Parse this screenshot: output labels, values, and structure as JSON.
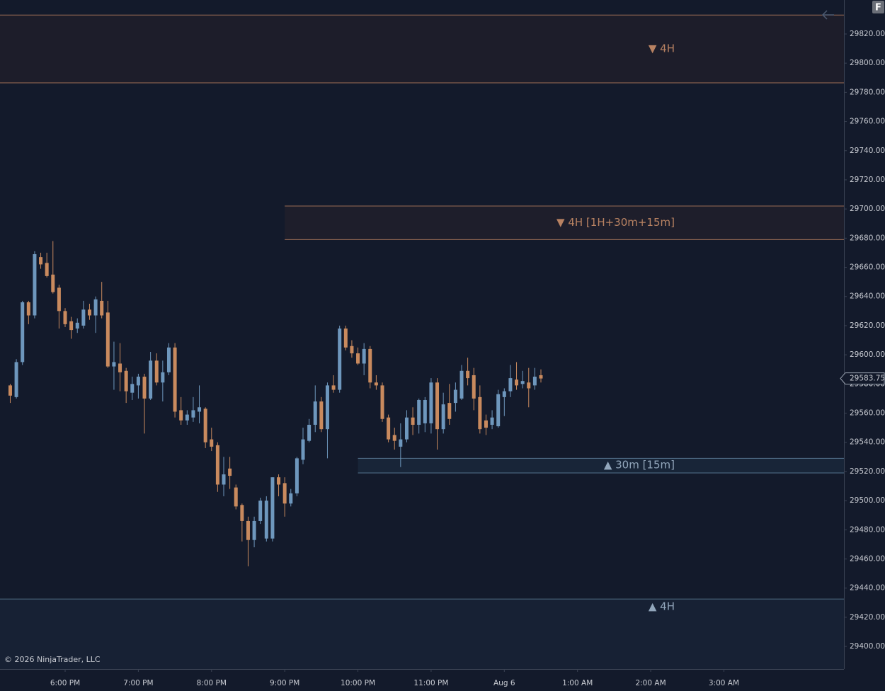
{
  "chart_data": {
    "type": "candlestick",
    "up_color": "#6e97bd",
    "down_color": "#c98a5e",
    "x": [
      17.25,
      17.3333,
      17.4167,
      17.5,
      17.5833,
      17.6667,
      17.75,
      17.8333,
      17.9167,
      18,
      18.0833,
      18.1667,
      18.25,
      18.3333,
      18.4167,
      18.5,
      18.5833,
      18.6667,
      18.75,
      18.8333,
      18.9167,
      19,
      19.0833,
      19.1667,
      19.25,
      19.3333,
      19.4167,
      19.5,
      19.5833,
      19.6667,
      19.75,
      19.8333,
      19.9167,
      20,
      20.0833,
      20.1667,
      20.25,
      20.3333,
      20.4167,
      20.5,
      20.5833,
      20.6667,
      20.75,
      20.8333,
      20.9167,
      21,
      21.0833,
      21.1667,
      21.25,
      21.3333,
      21.4167,
      21.5,
      21.5833,
      21.6667,
      21.75,
      21.8333,
      21.9167,
      22,
      22.0833,
      22.1667,
      22.25,
      22.3333,
      22.4167,
      22.5,
      22.5833,
      22.6667,
      22.75,
      22.8333,
      22.9167,
      23,
      23.0833,
      23.1667,
      23.25,
      23.3333,
      23.4167,
      23.5,
      23.5833,
      23.6667,
      23.75,
      23.8333,
      23.9167,
      24,
      24.0833,
      24.1667,
      24.25,
      24.3333,
      24.4167,
      24.5
    ],
    "open": [
      29579,
      29571,
      29595,
      29636,
      29627,
      29667,
      29663,
      29655,
      29646,
      29630,
      29623,
      29618,
      29620,
      29631,
      29627,
      29637,
      29629,
      29592,
      29594,
      29589,
      29574,
      29579,
      29585,
      29570,
      29596,
      29581,
      29588,
      29605,
      29562,
      29555,
      29557,
      29561,
      29563,
      29542,
      29538,
      29511,
      29522,
      29509,
      29497,
      29486,
      29473,
      29486,
      29474,
      29474,
      29516,
      29512,
      29498,
      29505,
      29528,
      29541,
      29552,
      29568,
      29549,
      29579,
      29576,
      29618,
      29606,
      29601,
      29594,
      29604,
      29581,
      29579,
      29557,
      29545,
      29537,
      29542,
      29557,
      29552,
      29553,
      29553,
      29581,
      29549,
      29567,
      29567,
      29570,
      29589,
      29586,
      29571,
      29555,
      29552,
      29551,
      29571,
      29575,
      29583,
      29580,
      29581,
      29579,
      29586
    ],
    "high": [
      29580,
      29597,
      29637,
      29637,
      29671,
      29670,
      29670,
      29678,
      29648,
      29632,
      29626,
      29625,
      29637,
      29635,
      29640,
      29650,
      29637,
      29609,
      29608,
      29591,
      29585,
      29587,
      29587,
      29602,
      29601,
      29596,
      29608,
      29608,
      29571,
      29562,
      29571,
      29579,
      29564,
      29550,
      29540,
      29530,
      29530,
      29511,
      29498,
      29489,
      29489,
      29502,
      29503,
      29516,
      29518,
      29516,
      29508,
      29530,
      29550,
      29556,
      29579,
      29571,
      29581,
      29586,
      29620,
      29620,
      29610,
      29605,
      29608,
      29606,
      29586,
      29581,
      29559,
      29550,
      29553,
      29562,
      29564,
      29570,
      29571,
      29584,
      29584,
      29574,
      29580,
      29581,
      29593,
      29598,
      29591,
      29579,
      29559,
      29562,
      29576,
      29577,
      29593,
      29595,
      29589,
      29591,
      29591,
      29590
    ],
    "low": [
      29567,
      29570,
      29593,
      29621,
      29625,
      29659,
      29653,
      29642,
      29618,
      29619,
      29611,
      29615,
      29618,
      29624,
      29615,
      29625,
      29591,
      29576,
      29575,
      29567,
      29569,
      29570,
      29546,
      29569,
      29579,
      29568,
      29586,
      29557,
      29552,
      29552,
      29554,
      29553,
      29536,
      29534,
      29506,
      29503,
      29508,
      29494,
      29472,
      29455,
      29468,
      29484,
      29472,
      29472,
      29503,
      29489,
      29496,
      29503,
      29525,
      29540,
      29547,
      29547,
      29529,
      29574,
      29574,
      29603,
      29598,
      29593,
      29586,
      29577,
      29576,
      29554,
      29540,
      29535,
      29523,
      29540,
      29545,
      29546,
      29547,
      29546,
      29535,
      29546,
      29552,
      29561,
      29569,
      29579,
      29562,
      29546,
      29545,
      29549,
      29550,
      29558,
      29571,
      29576,
      29577,
      29564,
      29576,
      29581
    ],
    "close": [
      29572,
      29595,
      29636,
      29627,
      29669,
      29662,
      29654,
      29643,
      29630,
      29621,
      29617,
      29622,
      29631,
      29627,
      29638,
      29627,
      29592,
      29595,
      29588,
      29575,
      29580,
      29585,
      29570,
      29596,
      29581,
      29588,
      29605,
      29561,
      29555,
      29559,
      29562,
      29564,
      29540,
      29537,
      29511,
      29518,
      29517,
      29496,
      29486,
      29473,
      29486,
      29500,
      29500,
      29516,
      29511,
      29498,
      29505,
      29529,
      29542,
      29552,
      29568,
      29549,
      29579,
      29576,
      29618,
      29605,
      29601,
      29594,
      29604,
      29581,
      29579,
      29556,
      29542,
      29541,
      29542,
      29557,
      29552,
      29569,
      29569,
      29581,
      29549,
      29566,
      29556,
      29576,
      29589,
      29584,
      29570,
      29549,
      29550,
      29557,
      29573,
      29575,
      29584,
      29579,
      29582,
      29577,
      29585,
      29583.75
    ],
    "xlim": [
      17.11,
      28.64
    ],
    "xticks": [
      {
        "value": 18,
        "label": "6:00 PM"
      },
      {
        "value": 19,
        "label": "7:00 PM"
      },
      {
        "value": 20,
        "label": "8:00 PM"
      },
      {
        "value": 21,
        "label": "9:00 PM"
      },
      {
        "value": 22,
        "label": "10:00 PM"
      },
      {
        "value": 23,
        "label": "11:00 PM"
      },
      {
        "value": 24,
        "label": "Aug 6"
      },
      {
        "value": 25,
        "label": "1:00 AM"
      },
      {
        "value": 26,
        "label": "2:00 AM"
      },
      {
        "value": 27,
        "label": "3:00 AM"
      }
    ],
    "ylim": [
      29384.5,
      29843.3
    ],
    "yticks": [
      {
        "value": 29400,
        "label": "29400.00"
      },
      {
        "value": 29420,
        "label": "29420.00"
      },
      {
        "value": 29440,
        "label": "29440.00"
      },
      {
        "value": 29460,
        "label": "29460.00"
      },
      {
        "value": 29480,
        "label": "29480.00"
      },
      {
        "value": 29500,
        "label": "29500.00"
      },
      {
        "value": 29520,
        "label": "29520.00"
      },
      {
        "value": 29540,
        "label": "29540.00"
      },
      {
        "value": 29560,
        "label": "29560.00"
      },
      {
        "value": 29580,
        "label": "29580.00"
      },
      {
        "value": 29600,
        "label": "29600.00"
      },
      {
        "value": 29620,
        "label": "29620.00"
      },
      {
        "value": 29640,
        "label": "29640.00"
      },
      {
        "value": 29660,
        "label": "29660.00"
      },
      {
        "value": 29680,
        "label": "29680.00"
      },
      {
        "value": 29700,
        "label": "29700.00"
      },
      {
        "value": 29720,
        "label": "29720.00"
      },
      {
        "value": 29740,
        "label": "29740.00"
      },
      {
        "value": 29760,
        "label": "29760.00"
      },
      {
        "value": 29780,
        "label": "29780.00"
      },
      {
        "value": 29800,
        "label": "29800.00"
      },
      {
        "value": 29820,
        "label": "29820.00"
      }
    ],
    "zones": [
      {
        "label": "▼ 4H",
        "high": 29833,
        "low": 29786.5,
        "start": null,
        "color": "#a06e56",
        "fill": "#1d1d2a",
        "label_color": "#b88262"
      },
      {
        "label": "▼ 4H [1H+30m+15m]",
        "high": 29702,
        "low": 29679,
        "start": 21,
        "color": "#9a6c56",
        "fill": "#1e1e2b",
        "label_color": "#b88262"
      },
      {
        "label": "▲ 30m [15m]",
        "high": 29529,
        "low": 29519,
        "start": 22,
        "color": "#55728c",
        "fill": "#182538",
        "label_color": "#92a6bb"
      },
      {
        "label": "▲ 4H",
        "high": 29432.5,
        "low": null,
        "start": null,
        "color": "#4e6880",
        "fill": "#172134",
        "label_color": "#92a6bb"
      }
    ],
    "last_price": {
      "value": 29583.75,
      "label": "29583.75"
    }
  },
  "copyright": "© 2026 NinjaTrader, LLC",
  "button_label": "F"
}
